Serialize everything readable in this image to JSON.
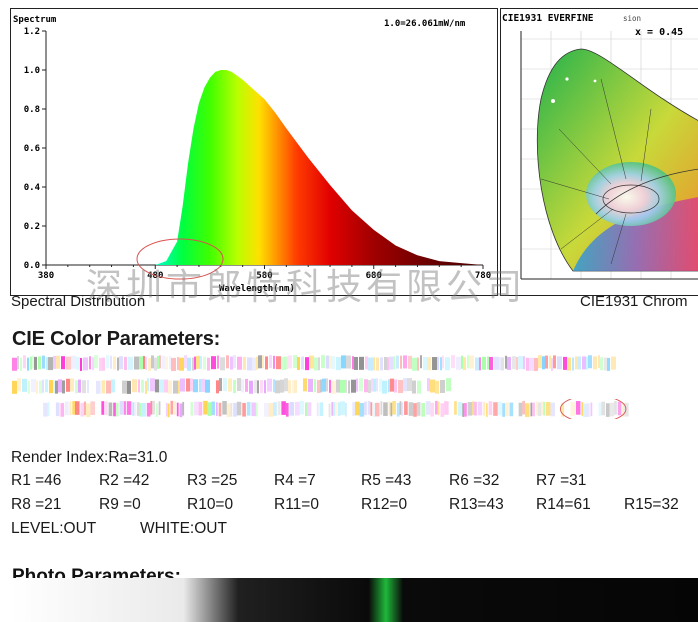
{
  "spectrum": {
    "title": "Spectrum",
    "scale_note": "1.0=26.061mW/nm",
    "xlabel": "Wavelength(nm)",
    "caption": "Spectral Distribution"
  },
  "chart_data": {
    "type": "area",
    "title": "Spectrum",
    "xlabel": "Wavelength(nm)",
    "ylabel": "",
    "xlim": [
      380,
      780
    ],
    "ylim": [
      0,
      1.2
    ],
    "x_ticks": [
      380,
      480,
      580,
      680,
      780
    ],
    "y_ticks": [
      0.0,
      0.2,
      0.4,
      0.6,
      0.8,
      1.0,
      1.2
    ],
    "tick_labels_y": [
      "0.0",
      "0.2",
      "0.4",
      "0.6",
      "0.8",
      "1.0",
      "1.2"
    ],
    "x": [
      380,
      480,
      490,
      500,
      505,
      510,
      515,
      520,
      525,
      530,
      535,
      540,
      545,
      550,
      555,
      560,
      570,
      580,
      590,
      600,
      620,
      640,
      660,
      680,
      700,
      720,
      740,
      760,
      780
    ],
    "series": [
      {
        "values": [
          0.0,
          0.0,
          0.02,
          0.12,
          0.3,
          0.52,
          0.7,
          0.83,
          0.91,
          0.96,
          0.99,
          1.0,
          1.0,
          0.99,
          0.97,
          0.95,
          0.9,
          0.85,
          0.78,
          0.7,
          0.55,
          0.41,
          0.28,
          0.18,
          0.1,
          0.05,
          0.02,
          0.01,
          0.0
        ]
      }
    ],
    "grid": false
  },
  "cie": {
    "title": "CIE1931 EVERFINE",
    "title_suffix": "sion",
    "x_readout": "x = 0.45",
    "caption": "CIE1931 Chrom"
  },
  "watermark": "深圳市郎特科技有限公司",
  "cie_params": {
    "title": "CIE Color Parameters:"
  },
  "render": {
    "index": "Render Index:Ra=31.0",
    "row1": [
      "R1 =46",
      "R2 =42",
      "R3 =25",
      "R4 =7",
      "R5 =43",
      "R6 =32",
      "R7 =31"
    ],
    "row2": [
      "R8 =21",
      "R9 =0",
      "R10=0",
      "R11=0",
      "R12=0",
      "R13=43",
      "R14=61",
      "R15=32"
    ],
    "level": "LEVEL:OUT",
    "white": "WHITE:OUT"
  },
  "photo": {
    "title": "Photo Parameters:"
  },
  "colors": {
    "annotation_circle": "#d9534f",
    "axis": "#222222"
  }
}
